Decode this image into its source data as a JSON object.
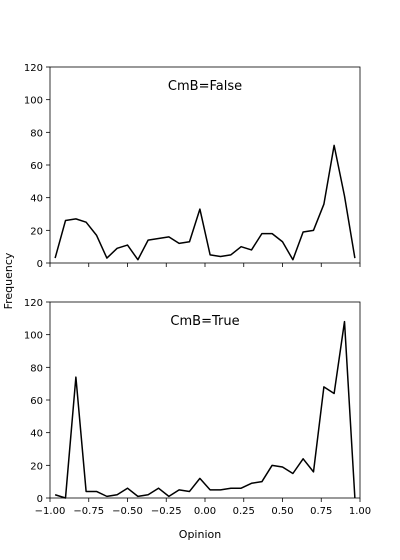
{
  "figure": {
    "ylabel": "Frequency",
    "xlabel": "Opinion"
  },
  "chart_data": [
    {
      "type": "line",
      "title": "",
      "annotation": "CmB=False",
      "xlabel": "",
      "ylabel": "",
      "xlim": [
        -1.0,
        1.0
      ],
      "ylim": [
        0,
        120
      ],
      "yticks": [
        0,
        20,
        40,
        60,
        80,
        100,
        120
      ],
      "ytick_labels": [
        "0",
        "20",
        "40",
        "60",
        "80",
        "100",
        "120"
      ],
      "xticks": [
        -1.0,
        -0.75,
        -0.5,
        -0.25,
        0.0,
        0.25,
        0.5,
        0.75,
        1.0
      ],
      "xtick_labels": [],
      "grid": false,
      "color": "#000000",
      "series": [
        {
          "x": [
            -0.967,
            -0.9,
            -0.833,
            -0.767,
            -0.7,
            -0.633,
            -0.567,
            -0.5,
            -0.433,
            -0.367,
            -0.3,
            -0.233,
            -0.167,
            -0.1,
            -0.033,
            0.033,
            0.1,
            0.167,
            0.233,
            0.3,
            0.367,
            0.433,
            0.5,
            0.567,
            0.633,
            0.7,
            0.767,
            0.833,
            0.9,
            0.967
          ],
          "values": [
            3,
            26,
            27,
            25,
            17,
            3,
            9,
            11,
            2,
            14,
            15,
            16,
            12,
            13,
            33,
            5,
            4,
            5,
            10,
            8,
            18,
            18,
            13,
            2,
            19,
            20,
            36,
            72,
            41,
            3
          ]
        }
      ]
    },
    {
      "type": "line",
      "title": "",
      "annotation": "CmB=True",
      "xlabel": "",
      "ylabel": "",
      "xlim": [
        -1.0,
        1.0
      ],
      "ylim": [
        0,
        120
      ],
      "yticks": [
        0,
        20,
        40,
        60,
        80,
        100,
        120
      ],
      "ytick_labels": [
        "0",
        "20",
        "40",
        "60",
        "80",
        "100",
        "120"
      ],
      "xticks": [
        -1.0,
        -0.75,
        -0.5,
        -0.25,
        0.0,
        0.25,
        0.5,
        0.75,
        1.0
      ],
      "xtick_labels": [
        "−1.00",
        "−0.75",
        "−0.50",
        "−0.25",
        "0.00",
        "0.25",
        "0.50",
        "0.75",
        "1.00"
      ],
      "grid": false,
      "color": "#000000",
      "series": [
        {
          "x": [
            -0.967,
            -0.9,
            -0.833,
            -0.767,
            -0.7,
            -0.633,
            -0.567,
            -0.5,
            -0.433,
            -0.367,
            -0.3,
            -0.233,
            -0.167,
            -0.1,
            -0.033,
            0.033,
            0.1,
            0.167,
            0.233,
            0.3,
            0.367,
            0.433,
            0.5,
            0.567,
            0.633,
            0.7,
            0.767,
            0.833,
            0.9,
            0.967
          ],
          "values": [
            2,
            0,
            74,
            4,
            4,
            1,
            2,
            6,
            1,
            2,
            6,
            1,
            5,
            4,
            12,
            5,
            5,
            6,
            6,
            9,
            10,
            20,
            19,
            15,
            24,
            16,
            68,
            64,
            108,
            0
          ]
        }
      ]
    }
  ]
}
